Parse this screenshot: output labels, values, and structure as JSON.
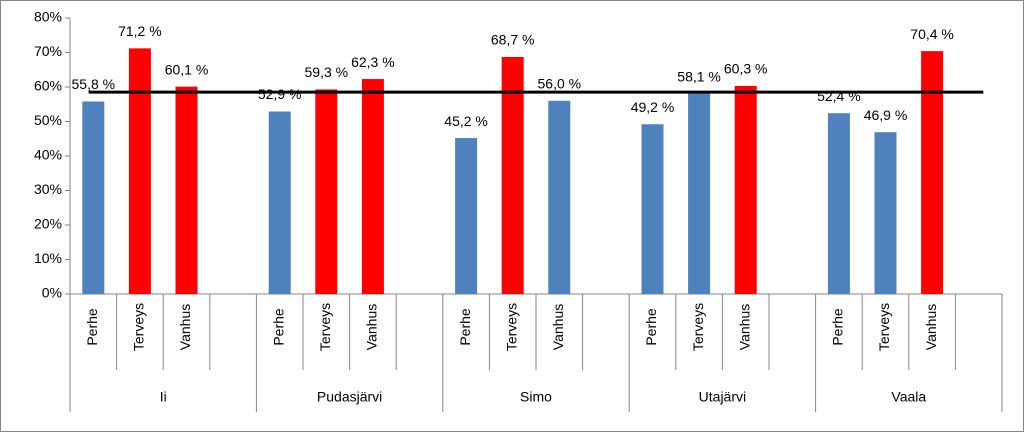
{
  "chart_data": {
    "type": "bar",
    "groups": [
      "Ii",
      "Pudasjärvi",
      "Simo",
      "Utajärvi",
      "Vaala"
    ],
    "categories": [
      "Perhe",
      "Terveys",
      "Vanhus",
      null,
      "Perhe",
      "Terveys",
      "Vanhus",
      null,
      "Perhe",
      "Terveys",
      "Vanhus",
      null,
      "Perhe",
      "Terveys",
      "Vanhus",
      null,
      "Perhe",
      "Terveys",
      "Vanhus",
      null
    ],
    "values": [
      55.8,
      71.2,
      60.1,
      null,
      52.9,
      59.3,
      62.3,
      null,
      45.2,
      68.7,
      56.0,
      null,
      49.2,
      58.1,
      60.3,
      null,
      52.4,
      46.9,
      70.4,
      null
    ],
    "value_labels": [
      "55,8 %",
      "71,2 %",
      "60,1 %",
      null,
      "52,9 %",
      "59,3 %",
      "62,3 %",
      null,
      "45,2 %",
      "68,7 %",
      "56,0 %",
      null,
      "49,2 %",
      "58,1 %",
      "60,3 %",
      null,
      "52,4 %",
      "46,9 %",
      "70,4 %",
      null
    ],
    "colors": [
      "#4f81bd",
      "#ff0000",
      "#ff0000",
      null,
      "#4f81bd",
      "#ff0000",
      "#ff0000",
      null,
      "#4f81bd",
      "#ff0000",
      "#4f81bd",
      null,
      "#4f81bd",
      "#4f81bd",
      "#ff0000",
      null,
      "#4f81bd",
      "#4f81bd",
      "#ff0000",
      null
    ],
    "reference_line": {
      "value": 58.5,
      "color": "#000000"
    },
    "ylim": [
      0,
      80
    ],
    "yticks": [
      {
        "value": 0,
        "label": "0%"
      },
      {
        "value": 10,
        "label": "10%"
      },
      {
        "value": 20,
        "label": "20%"
      },
      {
        "value": 30,
        "label": "30%"
      },
      {
        "value": 40,
        "label": "40%"
      },
      {
        "value": 50,
        "label": "50%"
      },
      {
        "value": 60,
        "label": "60%"
      },
      {
        "value": 70,
        "label": "70%"
      },
      {
        "value": 80,
        "label": "80%"
      }
    ],
    "grid": false
  }
}
